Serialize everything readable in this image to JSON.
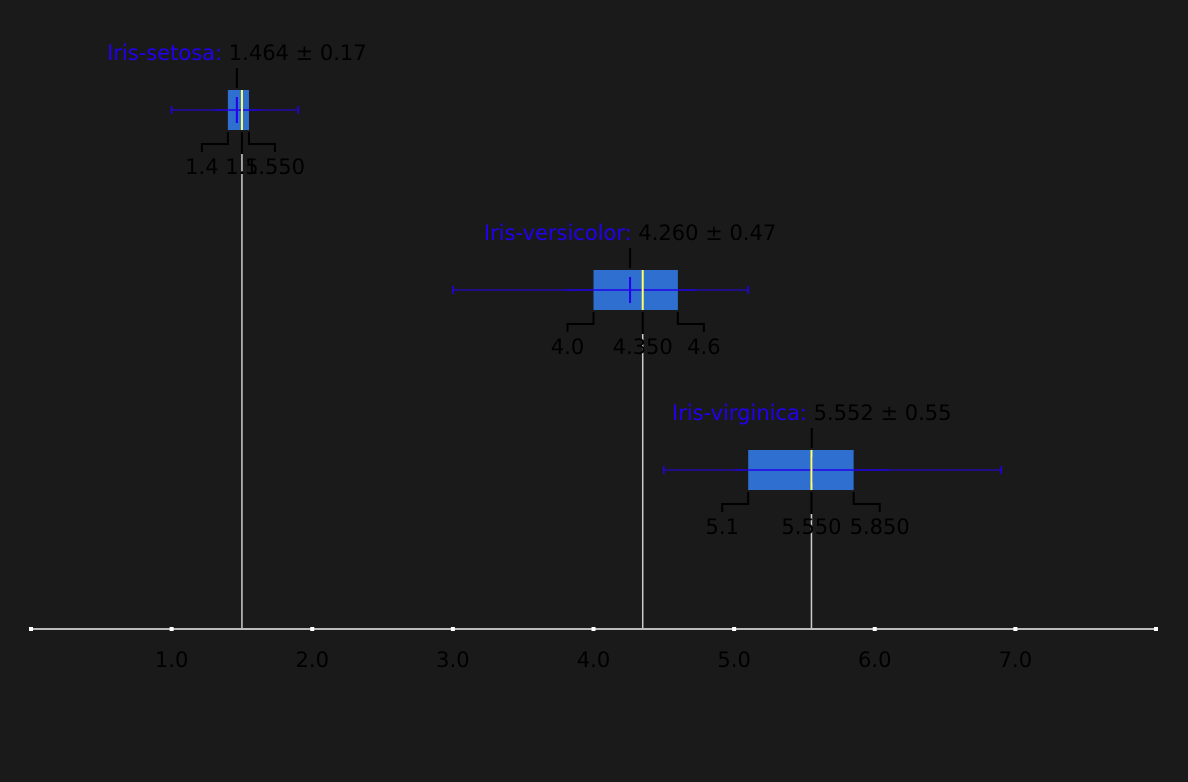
{
  "colors": {
    "background": "#1a1a1a",
    "axis": "#bbbbbb",
    "box_fill": "#2f6fcf",
    "whisker": "#2200ee",
    "median_line": "#ffff66",
    "class_label": "#2200ee",
    "text": "#000000",
    "bracket": "#000000"
  },
  "chart_data": {
    "type": "box",
    "x_axis": {
      "range": [
        0.0,
        8.0
      ],
      "ticks": [
        1.0,
        2.0,
        3.0,
        4.0,
        5.0,
        6.0,
        7.0
      ],
      "tick_labels": [
        "1.0",
        "2.0",
        "3.0",
        "4.0",
        "5.0",
        "6.0",
        "7.0"
      ]
    },
    "grid": false,
    "series": [
      {
        "name": "Iris-setosa",
        "mean": 1.464,
        "sd": 0.17,
        "q1": 1.4,
        "median": 1.5,
        "q3": 1.55,
        "min": 1.0,
        "max": 1.9,
        "mean_label": "1.464 ± 0.17",
        "q1_label": "1.4",
        "median_label": "1.5",
        "q3_label": "1.550"
      },
      {
        "name": "Iris-versicolor",
        "mean": 4.26,
        "sd": 0.47,
        "q1": 4.0,
        "median": 4.35,
        "q3": 4.6,
        "min": 3.0,
        "max": 5.1,
        "mean_label": "4.260 ± 0.47",
        "q1_label": "4.0",
        "median_label": "4.350",
        "q3_label": "4.6"
      },
      {
        "name": "Iris-virginica",
        "mean": 5.552,
        "sd": 0.55,
        "q1": 5.1,
        "median": 5.55,
        "q3": 5.85,
        "min": 4.5,
        "max": 6.9,
        "mean_label": "5.552 ± 0.55",
        "q1_label": "5.1",
        "median_label": "5.550",
        "q3_label": "5.850"
      }
    ]
  }
}
